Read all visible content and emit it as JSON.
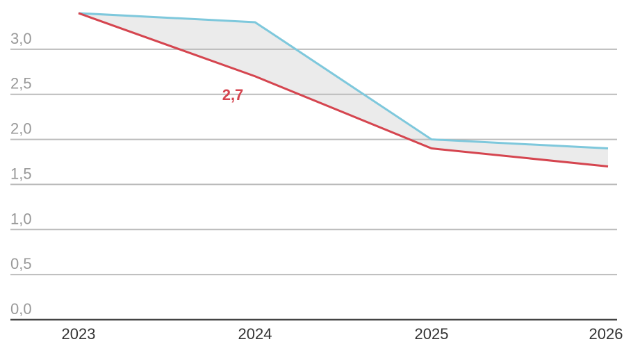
{
  "chart_data": {
    "type": "line",
    "categories": [
      "2023",
      "2024",
      "2025",
      "2026"
    ],
    "series": [
      {
        "color": "#7ec8dc",
        "values": [
          3.4,
          3.3,
          2.0,
          1.9
        ]
      },
      {
        "color": "#d5454f",
        "values": [
          3.4,
          2.7,
          1.9,
          1.7
        ],
        "value_labels": [
          null,
          "2,7",
          null,
          null
        ]
      }
    ],
    "fill_between": true,
    "fill_color": "#ebebeb",
    "ylim": [
      0,
      3.5
    ],
    "yticks": [
      {
        "value": 0,
        "label": "0,0"
      },
      {
        "value": 0.5,
        "label": "0,5"
      },
      {
        "value": 1,
        "label": "1,0"
      },
      {
        "value": 1.5,
        "label": "1,5"
      },
      {
        "value": 2,
        "label": "2,0"
      },
      {
        "value": 2.5,
        "label": "2,5"
      },
      {
        "value": 3,
        "label": "3,0"
      }
    ],
    "grid": true
  }
}
